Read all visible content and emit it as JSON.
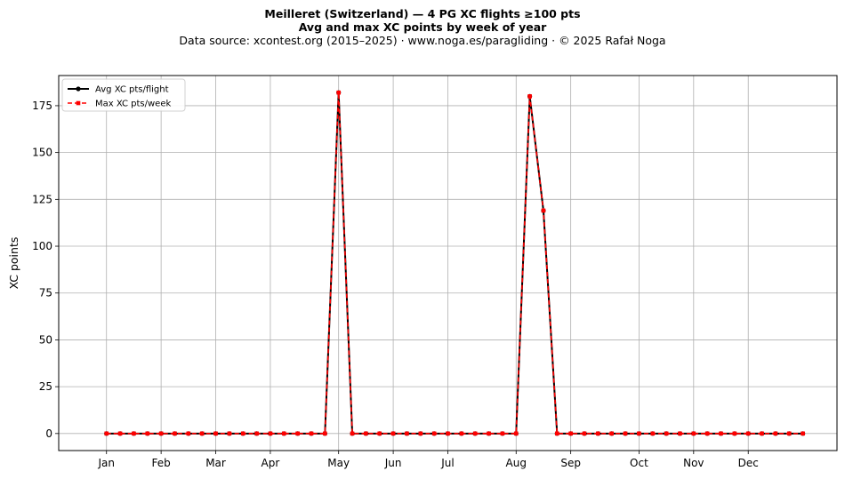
{
  "chart_data": {
    "type": "line",
    "title": "Meilleret (Switzerland)  —  4 PG XC flights ≥100 pts",
    "subtitle": "Avg and max XC points by week of year",
    "source": "Data source: xcontest.org (2015–2025)  ·  www.noga.es/paragliding  ·  © 2025 Rafał Noga",
    "xlabel": "",
    "ylabel": "XC points",
    "xlim": [
      -2.5,
      54.5
    ],
    "ylim": [
      -9.1,
      191.1
    ],
    "yticks": [
      0,
      25,
      50,
      75,
      100,
      125,
      150,
      175
    ],
    "grid": true,
    "legend_position": "top-left",
    "month_ticks": [
      {
        "label": "Jan",
        "week": 1
      },
      {
        "label": "Feb",
        "week": 5
      },
      {
        "label": "Mar",
        "week": 9
      },
      {
        "label": "Apr",
        "week": 13
      },
      {
        "label": "May",
        "week": 18
      },
      {
        "label": "Jun",
        "week": 22
      },
      {
        "label": "Jul",
        "week": 26
      },
      {
        "label": "Aug",
        "week": 31
      },
      {
        "label": "Sep",
        "week": 35
      },
      {
        "label": "Oct",
        "week": 40
      },
      {
        "label": "Nov",
        "week": 44
      },
      {
        "label": "Dec",
        "week": 48
      }
    ],
    "x": [
      1,
      2,
      3,
      4,
      5,
      6,
      7,
      8,
      9,
      10,
      11,
      12,
      13,
      14,
      15,
      16,
      17,
      18,
      19,
      20,
      21,
      22,
      23,
      24,
      25,
      26,
      27,
      28,
      29,
      30,
      31,
      32,
      33,
      34,
      35,
      36,
      37,
      38,
      39,
      40,
      41,
      42,
      43,
      44,
      45,
      46,
      47,
      48,
      49,
      50,
      51,
      52
    ],
    "series": [
      {
        "name": "Avg XC pts/flight",
        "color": "#000000",
        "values": [
          0,
          0,
          0,
          0,
          0,
          0,
          0,
          0,
          0,
          0,
          0,
          0,
          0,
          0,
          0,
          0,
          0,
          182,
          0,
          0,
          0,
          0,
          0,
          0,
          0,
          0,
          0,
          0,
          0,
          0,
          0,
          180,
          119,
          0,
          0,
          0,
          0,
          0,
          0,
          0,
          0,
          0,
          0,
          0,
          0,
          0,
          0,
          0,
          0,
          0,
          0,
          0
        ]
      },
      {
        "name": "Max XC pts/week",
        "color": "#ff0000",
        "values": [
          0,
          0,
          0,
          0,
          0,
          0,
          0,
          0,
          0,
          0,
          0,
          0,
          0,
          0,
          0,
          0,
          0,
          182,
          0,
          0,
          0,
          0,
          0,
          0,
          0,
          0,
          0,
          0,
          0,
          0,
          0,
          180,
          119,
          0,
          0,
          0,
          0,
          0,
          0,
          0,
          0,
          0,
          0,
          0,
          0,
          0,
          0,
          0,
          0,
          0,
          0,
          0
        ]
      }
    ]
  }
}
